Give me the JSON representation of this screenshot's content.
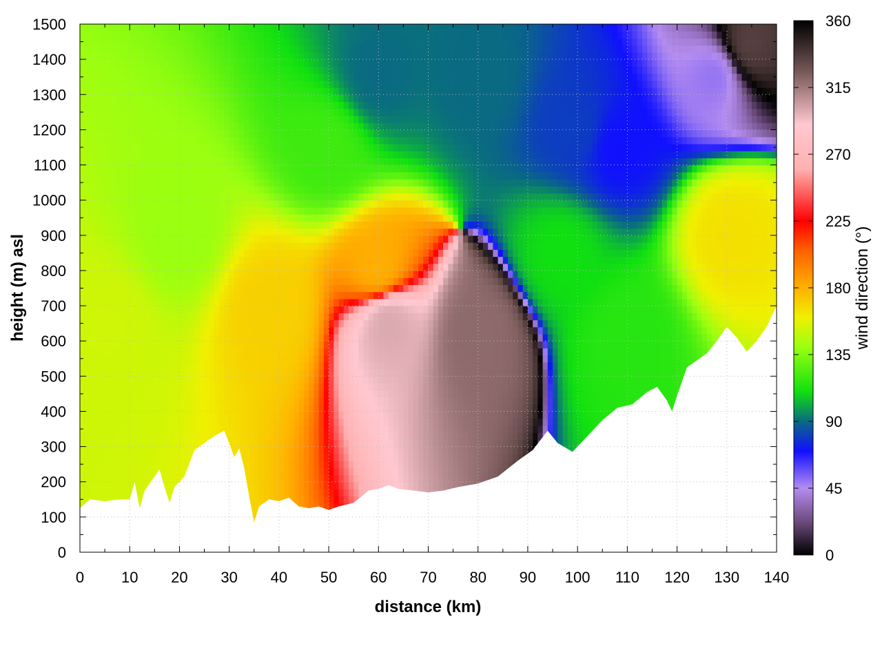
{
  "chart_data": {
    "type": "heatmap",
    "title": "",
    "xlabel": "distance (km)",
    "ylabel": "height (m) asl",
    "colorbar_label": "wind direction (°)",
    "xlim": [
      0,
      140
    ],
    "ylim": [
      0,
      1500
    ],
    "clim": [
      0,
      360
    ],
    "x_ticks": [
      0,
      10,
      20,
      30,
      40,
      50,
      60,
      70,
      80,
      90,
      100,
      110,
      120,
      130,
      140
    ],
    "y_ticks": [
      0,
      100,
      200,
      300,
      400,
      500,
      600,
      700,
      800,
      900,
      1000,
      1100,
      1200,
      1300,
      1400,
      1500
    ],
    "colorbar_ticks": [
      0,
      45,
      90,
      135,
      180,
      225,
      270,
      315,
      360
    ],
    "grid": true,
    "colormap": [
      {
        "v": 0,
        "c": "#000000"
      },
      {
        "v": 22,
        "c": "#6a4a7a"
      },
      {
        "v": 45,
        "c": "#b48cf0"
      },
      {
        "v": 70,
        "c": "#1010ff"
      },
      {
        "v": 90,
        "c": "#0a6a82"
      },
      {
        "v": 110,
        "c": "#10e010"
      },
      {
        "v": 140,
        "c": "#9aff10"
      },
      {
        "v": 160,
        "c": "#f0f000"
      },
      {
        "v": 180,
        "c": "#ffb000"
      },
      {
        "v": 205,
        "c": "#ff6000"
      },
      {
        "v": 225,
        "c": "#ff0000"
      },
      {
        "v": 260,
        "c": "#ffb0b0"
      },
      {
        "v": 290,
        "c": "#ffc8d0"
      },
      {
        "v": 325,
        "c": "#7a5a5a"
      },
      {
        "v": 360,
        "c": "#000000"
      }
    ],
    "terrain": {
      "distance_km": [
        0,
        2,
        5,
        8,
        10,
        11,
        12,
        13,
        15,
        16,
        17,
        18,
        19,
        21,
        23,
        25,
        27,
        29,
        30,
        31,
        32,
        33,
        34,
        35,
        36,
        38,
        40,
        42,
        44,
        46,
        48,
        50,
        52,
        55,
        58,
        60,
        62,
        64,
        67,
        70,
        73,
        76,
        80,
        84,
        88,
        91,
        94,
        96,
        99,
        102,
        105,
        108,
        111,
        114,
        116,
        118,
        119,
        120,
        122,
        124,
        126,
        128,
        130,
        132,
        134,
        136,
        138,
        140
      ],
      "height_m": [
        125,
        150,
        145,
        150,
        150,
        200,
        125,
        175,
        215,
        235,
        185,
        140,
        185,
        215,
        290,
        310,
        330,
        345,
        310,
        270,
        295,
        240,
        160,
        85,
        130,
        150,
        145,
        155,
        130,
        125,
        130,
        120,
        130,
        140,
        175,
        180,
        190,
        180,
        175,
        170,
        175,
        185,
        195,
        215,
        260,
        290,
        345,
        310,
        285,
        330,
        375,
        410,
        420,
        455,
        470,
        430,
        400,
        445,
        525,
        545,
        565,
        600,
        640,
        610,
        570,
        600,
        640,
        700
      ]
    },
    "field_regions": [
      {
        "center_km": 6,
        "center_m": 650,
        "direction_deg": 152
      },
      {
        "center_km": 20,
        "center_m": 900,
        "direction_deg": 140
      },
      {
        "center_km": 38,
        "center_m": 700,
        "direction_deg": 170
      },
      {
        "center_km": 50,
        "center_m": 1150,
        "direction_deg": 120
      },
      {
        "center_km": 60,
        "center_m": 1350,
        "direction_deg": 90
      },
      {
        "center_km": 80,
        "center_m": 1350,
        "direction_deg": 90
      },
      {
        "center_km": 100,
        "center_m": 1200,
        "direction_deg": 80
      },
      {
        "center_km": 108,
        "center_m": 1150,
        "direction_deg": 70
      },
      {
        "center_km": 97,
        "center_m": 850,
        "direction_deg": 110
      },
      {
        "center_km": 60,
        "center_m": 800,
        "direction_deg": 180
      },
      {
        "center_km": 62,
        "center_m": 660,
        "direction_deg": 300
      },
      {
        "center_km": 80,
        "center_m": 620,
        "direction_deg": 320
      },
      {
        "center_km": 110,
        "center_m": 620,
        "direction_deg": 115
      },
      {
        "center_km": 131,
        "center_m": 900,
        "direction_deg": 165
      },
      {
        "center_km": 128,
        "center_m": 1360,
        "direction_deg": 50
      },
      {
        "center_km": 134,
        "center_m": 1440,
        "direction_deg": 335
      }
    ]
  }
}
